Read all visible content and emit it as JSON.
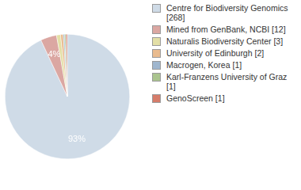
{
  "chart_data": {
    "type": "pie",
    "categories": [
      "Centre for Biodiversity Genomics [268]",
      "Mined from GenBank, NCBI [12]",
      "Naturalis Biodiversity Center [3]",
      "University of Edinburgh [2]",
      "Macrogen, Korea [1]",
      "Karl-Franzens University of Graz [1]",
      "GenoScreen [1]"
    ],
    "values": [
      93.06,
      4.17,
      1.04,
      0.69,
      0.35,
      0.35,
      0.35
    ],
    "value_labels": [
      "93%",
      "4%",
      null,
      null,
      null,
      null,
      null
    ],
    "colors": [
      "#cfdbe7",
      "#dba7a2",
      "#e3dfa6",
      "#e9bb8e",
      "#9fb6ce",
      "#aac48e",
      "#d67c6a"
    ],
    "data_labels": true,
    "legend": "right"
  }
}
